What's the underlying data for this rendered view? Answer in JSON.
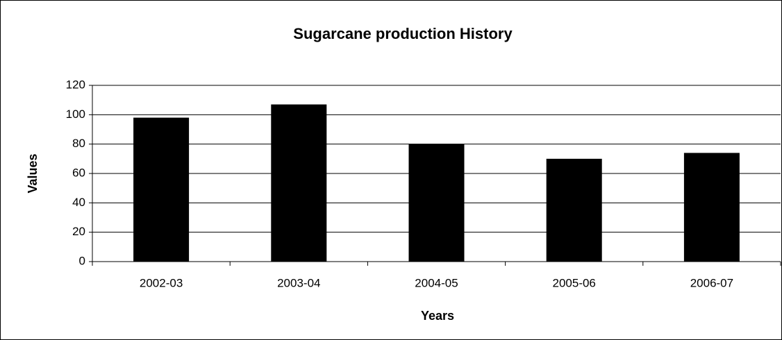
{
  "chart_data": {
    "type": "bar",
    "title": "Sugarcane production History",
    "x_label": "Years",
    "y_label": "Values",
    "categories": [
      "2002-03",
      "2003-04",
      "2004-05",
      "2005-06",
      "2006-07"
    ],
    "values": [
      98,
      107,
      80,
      70,
      74
    ],
    "color": "#000000",
    "ylim": [
      0,
      120
    ],
    "yticks": [
      0,
      20,
      40,
      60,
      80,
      100,
      120
    ],
    "grid": true
  }
}
